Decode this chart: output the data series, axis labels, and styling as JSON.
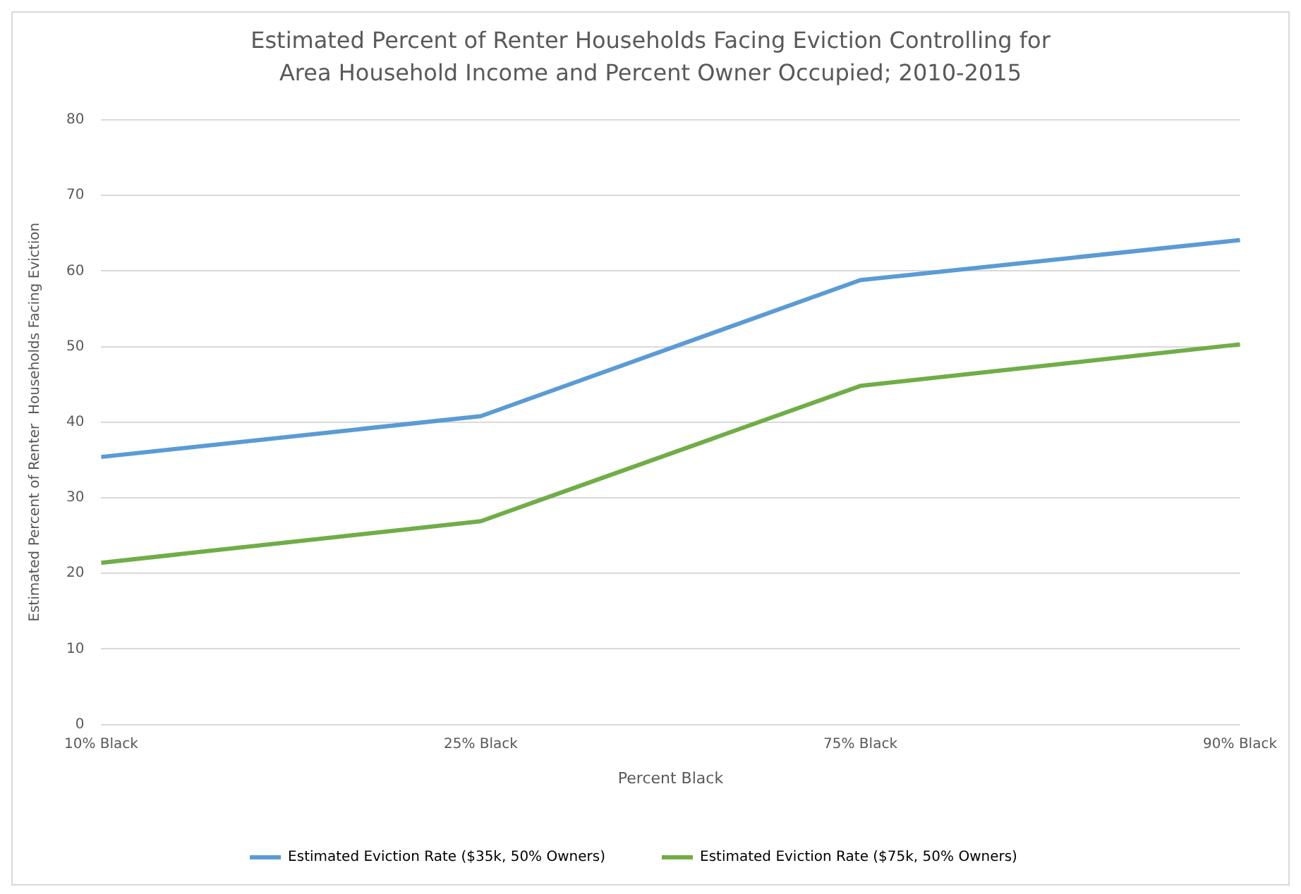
{
  "chart_data": {
    "type": "line",
    "title": "Estimated Percent of Renter Households Facing Eviction Controlling for Area Household Income and Percent Owner Occupied; 2010-2015",
    "xlabel": "Percent Black",
    "ylabel": "Estimated Percent of Renter  Households Facing Eviction",
    "categories": [
      "10% Black",
      "25% Black",
      "75% Black",
      "90% Black"
    ],
    "series": [
      {
        "name": "Estimated Eviction Rate ($35k, 50% Owners)",
        "color": "#5b9bd5",
        "values": [
          35.4,
          40.8,
          58.8,
          64.1
        ]
      },
      {
        "name": "Estimated Eviction Rate ($75k, 50% Owners)",
        "color": "#70ad47",
        "values": [
          21.4,
          26.9,
          44.8,
          50.3
        ]
      }
    ],
    "ylim": [
      0,
      80
    ],
    "yticks": [
      0,
      10,
      20,
      30,
      40,
      50,
      60,
      70,
      80
    ],
    "grid": "y",
    "legend": "bottom",
    "marker": "none",
    "line_style": "solid"
  }
}
